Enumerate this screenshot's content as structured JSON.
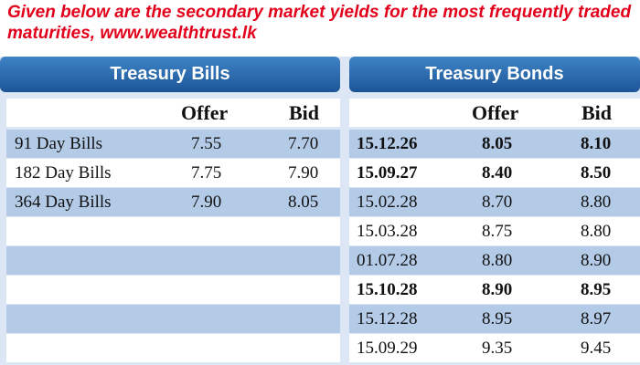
{
  "intro_text": "Given below are the secondary market yields for the most frequently traded maturities, www.wealthtrust.lk",
  "treasury_bills": {
    "title": "Treasury Bills",
    "col_offer": "Offer",
    "col_bid": "Bid",
    "rows": [
      {
        "name": "91 Day Bills",
        "offer": "7.55",
        "bid": "7.70"
      },
      {
        "name": "182 Day Bills",
        "offer": "7.75",
        "bid": "7.90"
      },
      {
        "name": "364 Day Bills",
        "offer": "7.90",
        "bid": "8.05"
      }
    ]
  },
  "treasury_bonds": {
    "title": "Treasury Bonds",
    "col_offer": "Offer",
    "col_bid": "Bid",
    "rows": [
      {
        "maturity": "15.12.26",
        "offer": "8.05",
        "bid": "8.10"
      },
      {
        "maturity": "15.09.27",
        "offer": "8.40",
        "bid": "8.50"
      },
      {
        "maturity": "15.02.28",
        "offer": "8.70",
        "bid": "8.80"
      },
      {
        "maturity": "15.03.28",
        "offer": "8.75",
        "bid": "8.80"
      },
      {
        "maturity": "01.07.28",
        "offer": "8.80",
        "bid": "8.90"
      },
      {
        "maturity": "15.10.28",
        "offer": "8.90",
        "bid": "8.95"
      },
      {
        "maturity": "15.12.28",
        "offer": "8.95",
        "bid": "8.97"
      },
      {
        "maturity": "15.09.29",
        "offer": "9.35",
        "bid": "9.45"
      }
    ]
  },
  "colors": {
    "intro_red": "#e3001b",
    "header_blue": "#2a6aae",
    "stripe_blue": "#b4cbe8",
    "background_blue": "#dce6f4"
  }
}
